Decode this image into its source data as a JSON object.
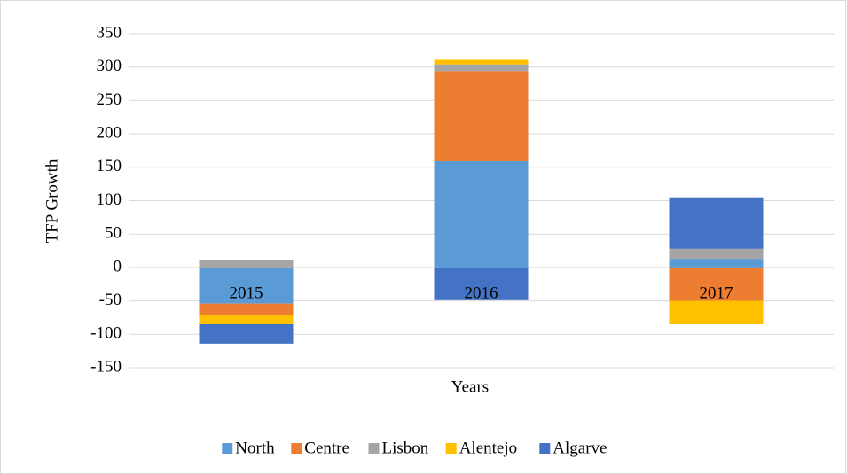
{
  "chart_data": {
    "type": "stacked_bar",
    "categories": [
      "2015",
      "2016",
      "2017"
    ],
    "series": [
      {
        "name": "North",
        "color": "#5b9bd5",
        "values": [
          -54,
          159,
          13
        ]
      },
      {
        "name": "Centre",
        "color": "#ed7d31",
        "values": [
          -17,
          135,
          -50
        ]
      },
      {
        "name": "Lisbon",
        "color": "#a5a5a5",
        "values": [
          11,
          10,
          15
        ]
      },
      {
        "name": "Alentejo",
        "color": "#ffc000",
        "values": [
          -14,
          7,
          -35
        ]
      },
      {
        "name": "Algarve",
        "color": "#4472c4",
        "values": [
          -29,
          -49,
          77
        ]
      }
    ],
    "x_label": "Years",
    "y_label": "TFP Growth",
    "ylim": [
      -150,
      350
    ],
    "yticks": [
      -150,
      -100,
      -50,
      0,
      50,
      100,
      150,
      200,
      250,
      300,
      350
    ],
    "grid": true,
    "legend": "bottom"
  }
}
